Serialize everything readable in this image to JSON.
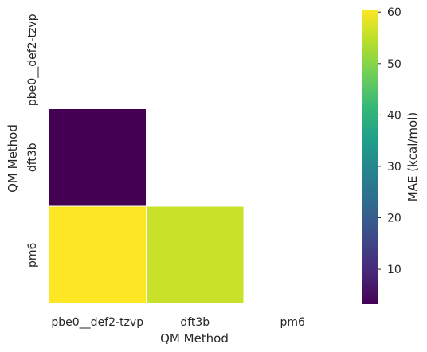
{
  "chart_data": {
    "type": "heatmap",
    "x_categories": [
      "pbe0__def2-tzvp",
      "dft3b",
      "pm6"
    ],
    "y_categories": [
      "pbe0__def2-tzvp",
      "dft3b",
      "pm6"
    ],
    "xlabel": "QM Method",
    "ylabel": "QM Method",
    "mask": "upper-triangle-including-diagonal",
    "cells": [
      {
        "row": "dft3b",
        "col": "pbe0__def2-tzvp",
        "value": 3.2
      },
      {
        "row": "pm6",
        "col": "pbe0__def2-tzvp",
        "value": 60.5
      },
      {
        "row": "pm6",
        "col": "dft3b",
        "value": 56.0
      }
    ],
    "colormap": "viridis",
    "colorbar": {
      "label": "MAE (kcal/mol)",
      "range": [
        3.2,
        60.5
      ],
      "ticks": [
        "10",
        "20",
        "30",
        "40",
        "50",
        "60"
      ]
    }
  }
}
